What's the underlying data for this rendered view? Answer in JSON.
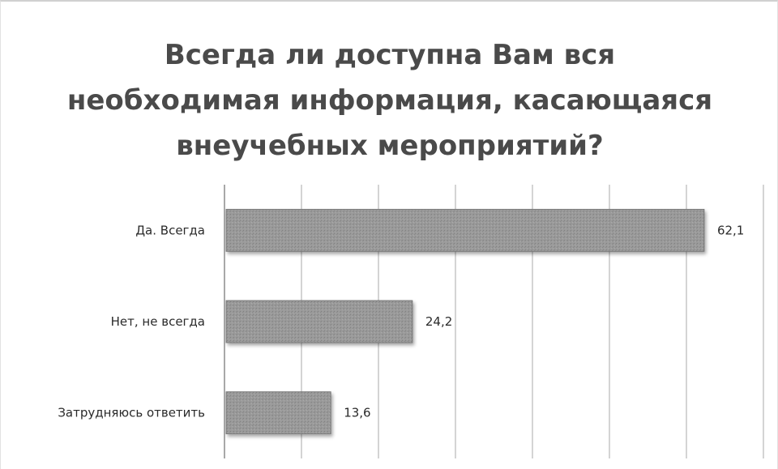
{
  "chart_data": {
    "type": "bar",
    "orientation": "horizontal",
    "title_lines": [
      "Всегда ли доступна Вам вся",
      "необходимая информация, касающаяся",
      "внеучебных мероприятий?"
    ],
    "categories": [
      "Да. Всегда",
      "Нет, не всегда",
      "Затрудняюсь ответить"
    ],
    "values": [
      62.1,
      24.2,
      13.6
    ],
    "data_labels": [
      "62,1",
      "24,2",
      "13,6"
    ],
    "xlim": [
      0,
      70
    ],
    "grid": true,
    "bar_color": "#9a9a9a"
  }
}
